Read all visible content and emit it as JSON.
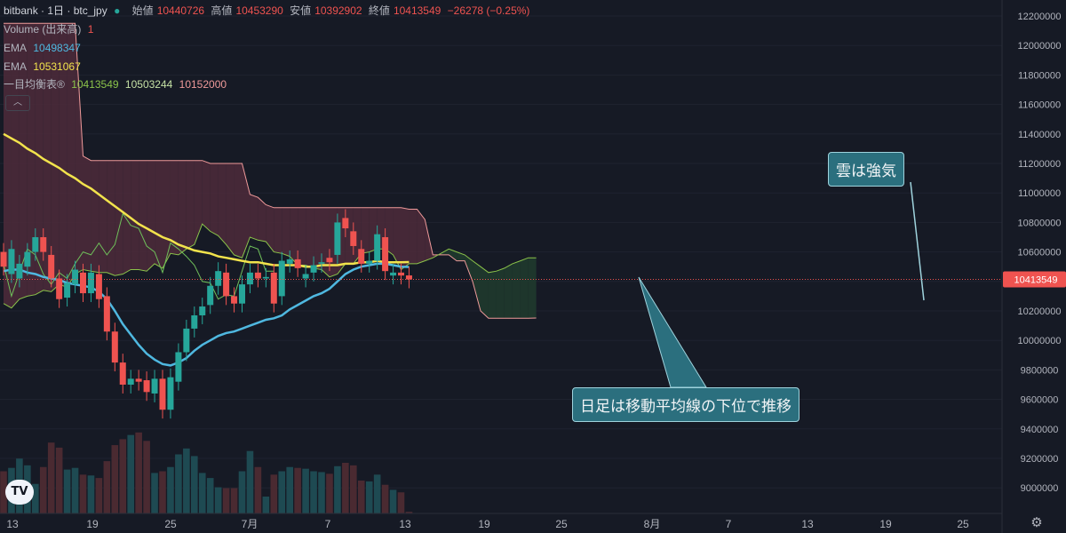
{
  "header": {
    "symbol": "bitbank · 1日 · btc_jpy",
    "open_label": "始値",
    "open": "10440726",
    "high_label": "高値",
    "high": "10453290",
    "low_label": "安値",
    "low": "10392902",
    "close_label": "終値",
    "close": "10413549",
    "change": "−26278 (−0.25%)",
    "volume_label": "Volume (出来高)",
    "volume_value": "1",
    "ema1_label": "EMA",
    "ema1_value": "10498347",
    "ema2_label": "EMA",
    "ema2_value": "10531067",
    "ichimoku_label": "一目均衡表®",
    "ichimoku_v1": "10413549",
    "ichimoku_v2": "10503244",
    "ichimoku_v3": "10152000",
    "collapse_icon": "chevron-up-icon"
  },
  "callouts": {
    "cloud": "雲は強気",
    "candles": "日足は移動平均線の下位で推移"
  },
  "price_tag": "10413549",
  "colors": {
    "up": "#26a69a",
    "down": "#ef5350",
    "ema_fast": "#4fb8e0",
    "ema_slow": "#f2e34c",
    "span_a": "#8bc34a",
    "span_b": "#ef9a9a",
    "cloud_bear": "#4a2a3a",
    "cloud_bull": "#1f3a2e",
    "background": "#161a25",
    "text": "#b2b5be"
  },
  "chart_data": {
    "type": "candlestick",
    "y_axis_ticks": [
      12200000,
      12000000,
      11800000,
      11600000,
      11400000,
      11200000,
      11000000,
      10800000,
      10600000,
      10400000,
      10200000,
      10000000,
      9800000,
      9600000,
      9400000,
      9200000,
      9000000
    ],
    "x_axis_ticks": [
      "13",
      "19",
      "25",
      "7月",
      "7",
      "13",
      "19",
      "25",
      "8月",
      "7",
      "13",
      "19",
      "25"
    ],
    "candles": [
      {
        "o": 10600000,
        "c": 10500000
      },
      {
        "o": 10450000,
        "c": 10620000
      },
      {
        "o": 10420000,
        "c": 10520000
      },
      {
        "o": 10500000,
        "c": 10600000
      },
      {
        "o": 10600000,
        "c": 10700000
      },
      {
        "o": 10700000,
        "c": 10600000
      },
      {
        "o": 10580000,
        "c": 10420000
      },
      {
        "o": 10420000,
        "c": 10280000
      },
      {
        "o": 10290000,
        "c": 10390000
      },
      {
        "o": 10380000,
        "c": 10480000
      },
      {
        "o": 10460000,
        "c": 10320000
      },
      {
        "o": 10320000,
        "c": 10460000
      },
      {
        "o": 10450000,
        "c": 10280000
      },
      {
        "o": 10300000,
        "c": 10060000
      },
      {
        "o": 10060000,
        "c": 9850000
      },
      {
        "o": 9850000,
        "c": 9700000
      },
      {
        "o": 9700000,
        "c": 9740000
      },
      {
        "o": 9740000,
        "c": 9720000
      },
      {
        "o": 9730000,
        "c": 9650000
      },
      {
        "o": 9640000,
        "c": 9740000
      },
      {
        "o": 9740000,
        "c": 9530000
      },
      {
        "o": 9530000,
        "c": 9750000
      },
      {
        "o": 9720000,
        "c": 9920000
      },
      {
        "o": 9920000,
        "c": 10080000
      },
      {
        "o": 10080000,
        "c": 10170000
      },
      {
        "o": 10170000,
        "c": 10230000
      },
      {
        "o": 10240000,
        "c": 10370000
      },
      {
        "o": 10370000,
        "c": 10470000
      },
      {
        "o": 10460000,
        "c": 10300000
      },
      {
        "o": 10300000,
        "c": 10250000
      },
      {
        "o": 10250000,
        "c": 10380000
      },
      {
        "o": 10380000,
        "c": 10460000
      },
      {
        "o": 10460000,
        "c": 10420000
      },
      {
        "o": 10420000,
        "c": 10430000
      },
      {
        "o": 10460000,
        "c": 10250000
      },
      {
        "o": 10300000,
        "c": 10540000
      },
      {
        "o": 10520000,
        "c": 10550000
      },
      {
        "o": 10550000,
        "c": 10490000
      },
      {
        "o": 10420000,
        "c": 10450000
      },
      {
        "o": 10460000,
        "c": 10510000
      },
      {
        "o": 10520000,
        "c": 10530000
      },
      {
        "o": 10560000,
        "c": 10530000
      },
      {
        "o": 10580000,
        "c": 10800000
      },
      {
        "o": 10830000,
        "c": 10760000
      },
      {
        "o": 10740000,
        "c": 10640000
      },
      {
        "o": 10620000,
        "c": 10520000
      },
      {
        "o": 10520000,
        "c": 10540000
      },
      {
        "o": 10540000,
        "c": 10720000
      },
      {
        "o": 10700000,
        "c": 10470000
      },
      {
        "o": 10440000,
        "c": 10460000
      },
      {
        "o": 10460000,
        "c": 10440000
      },
      {
        "o": 10440726,
        "c": 10413549
      }
    ],
    "ema_fast": [
      10470000,
      10480000,
      10480000,
      10460000,
      10450000,
      10430000,
      10420000,
      10410000,
      10390000,
      10380000,
      10370000,
      10360000,
      10330000,
      10280000,
      10200000,
      10110000,
      10040000,
      9970000,
      9910000,
      9870000,
      9840000,
      9830000,
      9850000,
      9880000,
      9930000,
      9970000,
      10000000,
      10030000,
      10050000,
      10060000,
      10080000,
      10100000,
      10120000,
      10140000,
      10150000,
      10170000,
      10210000,
      10240000,
      10270000,
      10300000,
      10320000,
      10350000,
      10400000,
      10450000,
      10480000,
      10500000,
      10510000,
      10520000,
      10520000,
      10510000,
      10500000,
      10498347
    ],
    "ema_slow": [
      11400000,
      11370000,
      11340000,
      11300000,
      11270000,
      11230000,
      11200000,
      11170000,
      11130000,
      11100000,
      11060000,
      11030000,
      10990000,
      10950000,
      10910000,
      10870000,
      10830000,
      10790000,
      10760000,
      10730000,
      10700000,
      10680000,
      10650000,
      10630000,
      10610000,
      10600000,
      10590000,
      10570000,
      10560000,
      10550000,
      10540000,
      10530000,
      10530000,
      10520000,
      10510000,
      10510000,
      10510000,
      10510000,
      10500000,
      10500000,
      10510000,
      10510000,
      10510000,
      10520000,
      10520000,
      10530000,
      10530000,
      10540000,
      10530000,
      10530000,
      10530000,
      10531067
    ],
    "span_a": [
      10250000,
      10220000,
      10280000,
      10300000,
      10310000,
      10340000,
      10330000,
      10380000,
      10360000,
      10450000,
      10480000,
      10470000,
      10460000,
      10460000,
      10440000,
      10450000,
      10480000,
      10480000,
      10470000,
      10520000,
      10490000,
      10590000,
      10580000,
      10620000,
      10650000,
      10790000,
      10740000,
      10710000,
      10650000,
      10580000,
      10560000,
      10700000,
      10680000,
      10670000,
      10600000,
      10590000,
      10570000,
      10510000,
      10510000,
      10490000,
      10480000,
      10430000,
      10450000,
      10520000,
      10520000,
      10590000,
      10600000,
      10620000,
      10620000,
      10580000,
      10480000,
      10520000,
      10520000,
      10540000,
      10560000,
      10590000,
      10620000,
      10600000,
      10580000,
      10540000,
      10500000,
      10460000,
      10470000,
      10490000,
      10520000,
      10540000,
      10560000,
      10560000,
      10560000,
      10570000,
      10580000,
      10580000
    ],
    "span_b": [
      12150000,
      12150000,
      12150000,
      12150000,
      12150000,
      12150000,
      12150000,
      12150000,
      12150000,
      12150000,
      11250000,
      11220000,
      11220000,
      11220000,
      11220000,
      11220000,
      11220000,
      11220000,
      11220000,
      11220000,
      11220000,
      11220000,
      11220000,
      11220000,
      11220000,
      11220000,
      11200000,
      11200000,
      11200000,
      11200000,
      11200000,
      10990000,
      10970000,
      10920000,
      10900000,
      10900000,
      10900000,
      10900000,
      10900000,
      10900000,
      10900000,
      10900000,
      10900000,
      10900000,
      10900000,
      10900000,
      10900000,
      10900000,
      10900000,
      10900000,
      10900000,
      10890000,
      10890000,
      10820000,
      10580000,
      10580000,
      10580000,
      10540000,
      10540000,
      10400000,
      10200000,
      10150000,
      10150000,
      10150000,
      10150000,
      10150000,
      10150000,
      10152000
    ],
    "chikou": [
      10520000,
      10300000,
      10460000,
      10620000,
      10580000,
      10450000,
      10380000,
      10460000,
      10420000,
      10520000,
      10600000,
      10580000,
      10660000,
      10580000,
      10650000,
      10860000,
      10780000,
      10760000,
      10640000,
      10600000,
      10460000,
      10660000,
      10620000,
      10570000,
      10510000,
      10400000,
      10390000,
      10280000,
      10310000,
      10300000,
      10470000,
      10640000,
      10620000,
      10470000,
      10470000
    ],
    "volume": [
      0.5,
      0.54,
      0.65,
      0.57,
      0.35,
      0.55,
      0.84,
      0.78,
      0.52,
      0.54,
      0.46,
      0.45,
      0.42,
      0.62,
      0.81,
      0.88,
      0.93,
      0.96,
      0.86,
      0.48,
      0.5,
      0.55,
      0.7,
      0.77,
      0.68,
      0.48,
      0.42,
      0.31,
      0.3,
      0.3,
      0.5,
      0.74,
      0.55,
      0.2,
      0.46,
      0.5,
      0.55,
      0.54,
      0.53,
      0.5,
      0.49,
      0.47,
      0.56,
      0.6,
      0.57,
      0.39,
      0.38,
      0.46,
      0.34,
      0.28,
      0.25,
      0.02
    ]
  }
}
